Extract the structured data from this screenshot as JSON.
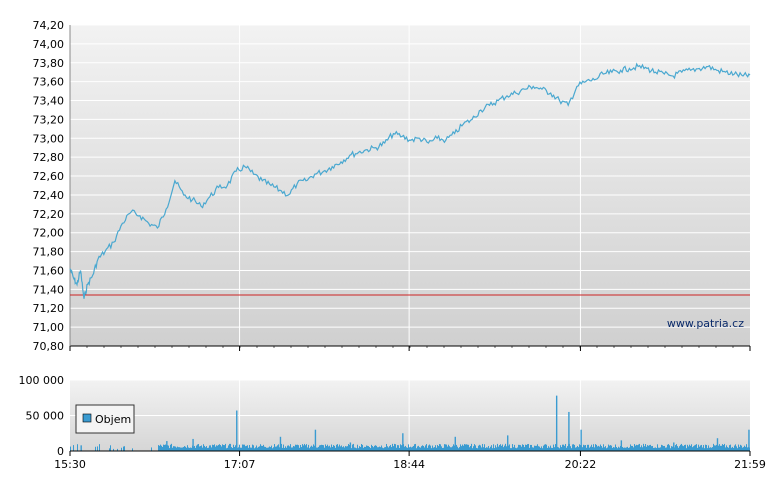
{
  "watermark": "www.patria.cz",
  "chart_data": [
    {
      "type": "line",
      "title": "",
      "xlabel": "",
      "ylabel": "",
      "x_ticks": [
        "15:30",
        "17:07",
        "18:44",
        "20:22",
        "21:59"
      ],
      "y_ticks": [
        "70,80",
        "71,00",
        "71,20",
        "71,40",
        "71,60",
        "71,80",
        "72,00",
        "72,20",
        "72,40",
        "72,60",
        "72,80",
        "73,00",
        "73,20",
        "73,40",
        "73,60",
        "73,80",
        "74,00",
        "74,20"
      ],
      "ylim": [
        70.8,
        74.2
      ],
      "reference_line": 71.34,
      "line_color": "#4aa8d0",
      "reference_color": "#cc2222",
      "series": [
        {
          "x": [
            "15:30",
            "15:32",
            "15:34",
            "15:36",
            "15:38",
            "15:40",
            "15:43",
            "15:46",
            "15:50",
            "15:55",
            "16:00",
            "16:05",
            "16:10",
            "16:15",
            "16:20",
            "16:25",
            "16:30",
            "16:35",
            "16:40",
            "16:45",
            "16:50",
            "16:55",
            "17:00",
            "17:05",
            "17:10",
            "17:15",
            "17:20",
            "17:25",
            "17:30",
            "17:35",
            "17:40",
            "17:45",
            "17:50",
            "17:55",
            "18:00",
            "18:05",
            "18:10",
            "18:15",
            "18:20",
            "18:25",
            "18:30",
            "18:35",
            "18:40",
            "18:45",
            "18:50",
            "18:55",
            "19:00",
            "19:05",
            "19:10",
            "19:15",
            "19:20",
            "19:25",
            "19:30",
            "19:35",
            "19:40",
            "19:45",
            "19:50",
            "19:55",
            "20:00",
            "20:05",
            "20:10",
            "20:15",
            "20:20",
            "20:25",
            "20:30",
            "20:35",
            "20:40",
            "20:45",
            "20:50",
            "20:55",
            "21:00",
            "21:05",
            "21:10",
            "21:15",
            "21:20",
            "21:25",
            "21:30",
            "21:35",
            "21:40",
            "21:45",
            "21:50",
            "21:55",
            "21:59"
          ],
          "values": [
            71.62,
            71.52,
            71.45,
            71.6,
            71.3,
            71.45,
            71.55,
            71.72,
            71.8,
            71.9,
            72.1,
            72.22,
            72.18,
            72.1,
            72.05,
            72.25,
            72.55,
            72.4,
            72.35,
            72.28,
            72.38,
            72.48,
            72.5,
            72.65,
            72.7,
            72.62,
            72.55,
            72.5,
            72.45,
            72.4,
            72.52,
            72.55,
            72.62,
            72.65,
            72.7,
            72.75,
            72.82,
            72.85,
            72.88,
            72.9,
            72.95,
            73.05,
            73.02,
            72.98,
            73.0,
            72.95,
            73.0,
            72.98,
            73.05,
            73.15,
            73.2,
            73.3,
            73.35,
            73.4,
            73.45,
            73.48,
            73.52,
            73.55,
            73.52,
            73.48,
            73.4,
            73.35,
            73.55,
            73.6,
            73.62,
            73.68,
            73.7,
            73.72,
            73.74,
            73.76,
            73.74,
            73.7,
            73.68,
            73.66,
            73.7,
            73.72,
            73.74,
            73.76,
            73.72,
            73.7,
            73.68,
            73.66,
            73.67
          ]
        }
      ]
    },
    {
      "type": "bar",
      "title": "",
      "xlabel": "",
      "ylabel": "",
      "x_ticks": [
        "15:30",
        "17:07",
        "18:44",
        "20:22",
        "21:59"
      ],
      "y_ticks": [
        "0",
        "50 000",
        "100 000"
      ],
      "ylim": [
        0,
        100000
      ],
      "legend": "Objem",
      "legend_position": "left",
      "bar_color": "#3a9bd1",
      "spikes": [
        {
          "x": "15:36",
          "value": 8000
        },
        {
          "x": "16:25",
          "value": 14000
        },
        {
          "x": "16:40",
          "value": 17000
        },
        {
          "x": "17:05",
          "value": 57000
        },
        {
          "x": "17:30",
          "value": 20000
        },
        {
          "x": "17:50",
          "value": 30000
        },
        {
          "x": "18:10",
          "value": 12000
        },
        {
          "x": "18:40",
          "value": 25000
        },
        {
          "x": "19:10",
          "value": 20000
        },
        {
          "x": "19:40",
          "value": 22000
        },
        {
          "x": "20:08",
          "value": 78000
        },
        {
          "x": "20:15",
          "value": 55000
        },
        {
          "x": "20:22",
          "value": 30000
        },
        {
          "x": "20:45",
          "value": 15000
        },
        {
          "x": "21:15",
          "value": 12000
        },
        {
          "x": "21:40",
          "value": 18000
        },
        {
          "x": "21:58",
          "value": 30000
        }
      ],
      "base_level": 7000
    }
  ]
}
